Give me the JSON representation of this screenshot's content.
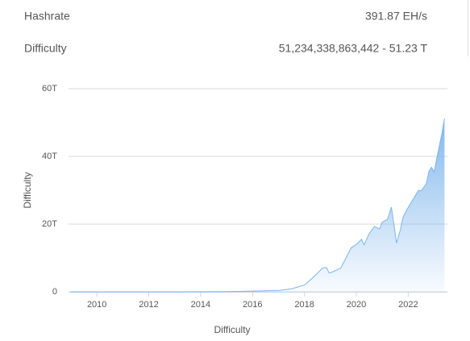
{
  "stats": [
    {
      "label": "Hashrate",
      "value": "391.87 EH/s"
    },
    {
      "label": "Difficulty",
      "value": "51,234,338,863,442 - 51.23 T"
    }
  ],
  "chart_data": {
    "type": "area",
    "x_label": "Difficulty",
    "y_label": "Difficulty",
    "x": [
      2009,
      2010,
      2011,
      2012,
      2013,
      2014,
      2015,
      2016,
      2017,
      2017.5,
      2018,
      2018.3,
      2018.7,
      2018.85,
      2018.95,
      2019.0,
      2019.4,
      2019.6,
      2019.8,
      2020.0,
      2020.2,
      2020.3,
      2020.5,
      2020.7,
      2020.9,
      2021.0,
      2021.2,
      2021.35,
      2021.45,
      2021.55,
      2021.7,
      2021.8,
      2021.95,
      2022.2,
      2022.4,
      2022.5,
      2022.7,
      2022.8,
      2022.9,
      2023.0,
      2023.1,
      2023.2,
      2023.3,
      2023.4
    ],
    "values": [
      0,
      1e-05,
      0.001,
      0.002,
      0.01,
      0.04,
      0.06,
      0.2,
      0.4,
      0.9,
      2,
      4,
      7,
      7.2,
      5.6,
      5.6,
      7,
      10,
      13,
      14,
      15.5,
      13.9,
      17.3,
      19.3,
      18.6,
      20.6,
      21.4,
      25,
      19.9,
      14.4,
      18.4,
      22,
      24.3,
      27.5,
      30,
      29.8,
      32,
      35.6,
      36.8,
      35.4,
      39.4,
      43.1,
      46.8,
      51.2
    ],
    "color": "#7cb5ec",
    "xlim": [
      2009,
      2023.45
    ],
    "xticks": [
      2010,
      2012,
      2014,
      2016,
      2018,
      2020,
      2022
    ],
    "ylim": [
      0,
      60
    ],
    "yticks": [
      0,
      {
        "value": 20,
        "label": "20T"
      },
      {
        "value": 40,
        "label": "40T"
      },
      {
        "value": 60,
        "label": "60T"
      }
    ],
    "grid": true
  }
}
